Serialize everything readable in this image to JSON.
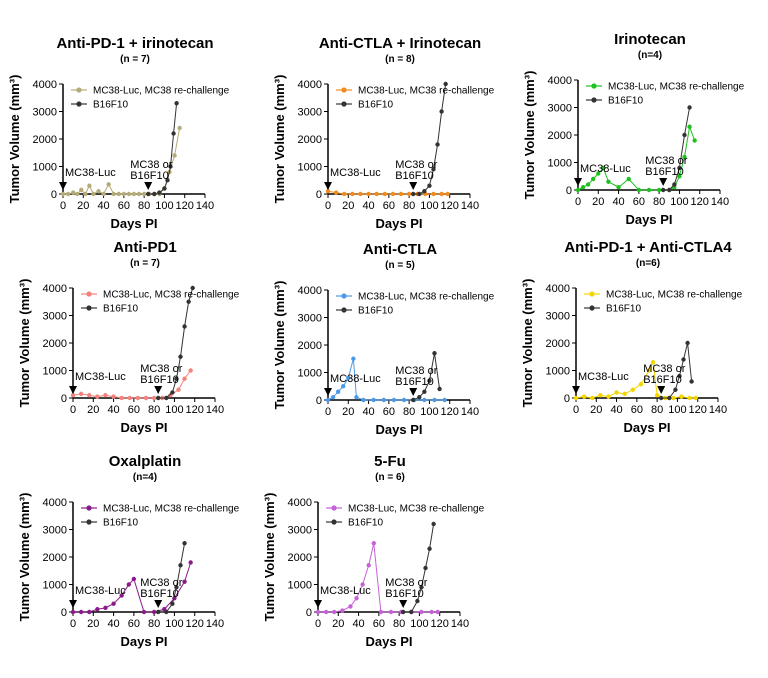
{
  "figure": {
    "background": "#ffffff",
    "series_colors": {
      "irinotecan_pd1": "#b5ab78",
      "irinotecan_ctla": "#f28b1d",
      "irinotecan": "#1ec11e",
      "pd1": "#f4817b",
      "ctla": "#4b9ae8",
      "pd1_ctla4": "#f5d500",
      "oxaliplatin": "#8a1a8a",
      "fu5": "#c761d8",
      "b16f10": "#333333"
    }
  },
  "chart_data": [
    {
      "type": "line",
      "title": "Anti-PD-1 + irinotecan",
      "subtitle": "(n = 7)",
      "xlabel": "Days PI",
      "ylabel": "Tumor Volume (mm³)",
      "xlim": [
        0,
        140
      ],
      "ylim": [
        0,
        4000
      ],
      "xticks": [
        "0",
        "20",
        "40",
        "60",
        "80",
        "100",
        "120",
        "140"
      ],
      "yticks": [
        "0",
        "1000",
        "2000",
        "3000",
        "4000"
      ],
      "annotations": [
        {
          "text": "MC38-Luc",
          "x": 0
        },
        {
          "text": "MC38 or",
          "text2": "B16F10",
          "x": 84
        }
      ],
      "series": [
        {
          "name": "MC38-Luc, MC38 re-challenge",
          "color": "#b5ab78",
          "x": [
            0,
            5,
            10,
            14,
            18,
            22,
            26,
            30,
            35,
            40,
            45,
            50,
            55,
            60,
            65,
            70,
            75,
            80,
            85,
            90,
            95,
            100,
            105,
            110,
            115
          ],
          "y": [
            0,
            0,
            50,
            0,
            150,
            0,
            300,
            0,
            100,
            0,
            350,
            0,
            0,
            0,
            0,
            0,
            0,
            0,
            0,
            0,
            0,
            200,
            800,
            1400,
            2400
          ]
        },
        {
          "name": "B16F10",
          "color": "#333333",
          "x": [
            84,
            90,
            95,
            100,
            103,
            106,
            109,
            112
          ],
          "y": [
            0,
            0,
            50,
            200,
            500,
            1000,
            2200,
            3300
          ]
        }
      ]
    },
    {
      "type": "line",
      "title": "Anti-CTLA + Irinotecan",
      "subtitle": "(n = 8)",
      "xlabel": "Days PI",
      "ylabel": "Tumor Volume (mm³)",
      "xlim": [
        0,
        140
      ],
      "ylim": [
        0,
        4000
      ],
      "xticks": [
        "0",
        "20",
        "40",
        "60",
        "80",
        "100",
        "120",
        "140"
      ],
      "yticks": [
        "0",
        "1000",
        "2000",
        "3000",
        "4000"
      ],
      "annotations": [
        {
          "text": "MC38-Luc",
          "x": 0
        },
        {
          "text": "MC38 or",
          "text2": "B16F10",
          "x": 84
        }
      ],
      "series": [
        {
          "name": "MC38-Luc, MC38 re-challenge",
          "color": "#f28b1d",
          "x": [
            0,
            8,
            16,
            24,
            32,
            40,
            48,
            56,
            64,
            72,
            80,
            88,
            96,
            104,
            112,
            118
          ],
          "y": [
            100,
            50,
            0,
            0,
            0,
            0,
            0,
            0,
            0,
            0,
            0,
            0,
            0,
            0,
            0,
            0
          ]
        },
        {
          "name": "B16F10",
          "color": "#333333",
          "x": [
            84,
            90,
            95,
            100,
            104,
            108,
            112,
            116
          ],
          "y": [
            0,
            0,
            100,
            300,
            900,
            1800,
            3000,
            4000
          ]
        }
      ]
    },
    {
      "type": "line",
      "title": "Irinotecan",
      "subtitle": "(n=4)",
      "xlabel": "Days PI",
      "ylabel": "Tumor Volume (mm³)",
      "xlim": [
        0,
        140
      ],
      "ylim": [
        0,
        4000
      ],
      "xticks": [
        "0",
        "20",
        "40",
        "60",
        "80",
        "100",
        "120",
        "140"
      ],
      "yticks": [
        "0",
        "1000",
        "2000",
        "3000",
        "4000"
      ],
      "annotations": [
        {
          "text": "MC38-Luc",
          "x": 0
        },
        {
          "text": "MC38 or",
          "text2": "B16F10",
          "x": 84
        }
      ],
      "series": [
        {
          "name": "MC38-Luc, MC38 re-challenge",
          "color": "#1ec11e",
          "x": [
            0,
            5,
            10,
            15,
            20,
            25,
            30,
            40,
            50,
            60,
            70,
            80,
            90,
            95,
            100,
            105,
            110,
            115
          ],
          "y": [
            0,
            100,
            200,
            400,
            600,
            800,
            300,
            100,
            400,
            0,
            0,
            0,
            0,
            100,
            500,
            1200,
            2300,
            1800
          ]
        },
        {
          "name": "B16F10",
          "color": "#333333",
          "x": [
            84,
            90,
            95,
            100,
            105,
            110
          ],
          "y": [
            0,
            0,
            200,
            800,
            2000,
            3000
          ]
        }
      ]
    },
    {
      "type": "line",
      "title": "Anti-PD1",
      "subtitle": "(n = 7)",
      "xlabel": "Days PI",
      "ylabel": "Tumor Volume (mm³)",
      "xlim": [
        0,
        140
      ],
      "ylim": [
        0,
        4000
      ],
      "xticks": [
        "0",
        "20",
        "40",
        "60",
        "80",
        "100",
        "120",
        "140"
      ],
      "yticks": [
        "0",
        "1000",
        "2000",
        "3000",
        "4000"
      ],
      "annotations": [
        {
          "text": "MC38-Luc",
          "x": 0
        },
        {
          "text": "MC38 or",
          "text2": "B16F10",
          "x": 84
        }
      ],
      "series": [
        {
          "name": "MC38-Luc, MC38 re-challenge",
          "color": "#f4817b",
          "x": [
            0,
            8,
            16,
            24,
            32,
            40,
            48,
            56,
            64,
            72,
            80,
            88,
            96,
            104,
            110,
            116
          ],
          "y": [
            100,
            150,
            100,
            50,
            100,
            50,
            0,
            0,
            0,
            0,
            0,
            0,
            100,
            300,
            700,
            1000
          ]
        },
        {
          "name": "B16F10",
          "color": "#333333",
          "x": [
            84,
            92,
            98,
            102,
            106,
            110,
            114,
            118
          ],
          "y": [
            0,
            0,
            200,
            700,
            1500,
            2600,
            3500,
            4000
          ]
        }
      ]
    },
    {
      "type": "line",
      "title": "Anti-CTLA",
      "subtitle": "(n = 5)",
      "xlabel": "Days PI",
      "ylabel": "Tumor Volume (mm³)",
      "xlim": [
        0,
        140
      ],
      "ylim": [
        0,
        4000
      ],
      "xticks": [
        "0",
        "20",
        "40",
        "60",
        "80",
        "100",
        "120",
        "140"
      ],
      "yticks": [
        "0",
        "1000",
        "2000",
        "3000",
        "4000"
      ],
      "annotations": [
        {
          "text": "MC38-Luc",
          "x": 0
        },
        {
          "text": "MC38 or",
          "text2": "B16F10",
          "x": 84
        }
      ],
      "series": [
        {
          "name": "MC38-Luc, MC38 re-challenge",
          "color": "#4b9ae8",
          "x": [
            0,
            5,
            10,
            15,
            20,
            25,
            28,
            35,
            45,
            55,
            65,
            75,
            85,
            95,
            105,
            115
          ],
          "y": [
            0,
            100,
            300,
            500,
            800,
            1500,
            100,
            0,
            0,
            0,
            0,
            0,
            0,
            0,
            0,
            0
          ]
        },
        {
          "name": "B16F10",
          "color": "#333333",
          "x": [
            84,
            90,
            95,
            100,
            105,
            110
          ],
          "y": [
            0,
            100,
            300,
            700,
            1700,
            400
          ]
        }
      ]
    },
    {
      "type": "line",
      "title": "Anti-PD-1 + Anti-CTLA4",
      "subtitle": "(n=6)",
      "xlabel": "Days PI",
      "ylabel": "Tumor Volume (mm³)",
      "xlim": [
        0,
        140
      ],
      "ylim": [
        0,
        4000
      ],
      "xticks": [
        "0",
        "20",
        "40",
        "60",
        "80",
        "100",
        "120",
        "140"
      ],
      "yticks": [
        "0",
        "1000",
        "2000",
        "3000",
        "4000"
      ],
      "annotations": [
        {
          "text": "MC38-Luc",
          "x": 0
        },
        {
          "text": "MC38 or",
          "text2": "B16F10",
          "x": 84
        }
      ],
      "series": [
        {
          "name": "MC38-Luc, MC38 re-challenge",
          "color": "#f5d500",
          "x": [
            0,
            8,
            16,
            24,
            32,
            40,
            48,
            56,
            64,
            72,
            76,
            80,
            88,
            96,
            104,
            112,
            118
          ],
          "y": [
            0,
            50,
            0,
            100,
            50,
            200,
            150,
            300,
            500,
            1000,
            1300,
            100,
            0,
            0,
            50,
            0,
            0
          ]
        },
        {
          "name": "B16F10",
          "color": "#333333",
          "x": [
            84,
            92,
            98,
            102,
            106,
            110,
            114
          ],
          "y": [
            0,
            0,
            300,
            800,
            1400,
            2000,
            600
          ]
        }
      ]
    },
    {
      "type": "line",
      "title": "Oxalplatin",
      "subtitle": "(n=4)",
      "xlabel": "Days PI",
      "ylabel": "Tumor Volume (mm³)",
      "xlim": [
        0,
        140
      ],
      "ylim": [
        0,
        4000
      ],
      "xticks": [
        "0",
        "20",
        "40",
        "60",
        "80",
        "100",
        "120",
        "140"
      ],
      "yticks": [
        "0",
        "1000",
        "2000",
        "3000",
        "4000"
      ],
      "annotations": [
        {
          "text": "MC38-Luc",
          "x": 0
        },
        {
          "text": "MC38 or",
          "text2": "B16F10",
          "x": 84
        }
      ],
      "series": [
        {
          "name": "MC38-Luc, MC38 re-challenge",
          "color": "#8a1a8a",
          "x": [
            0,
            8,
            16,
            24,
            32,
            40,
            48,
            55,
            60,
            70,
            80,
            90,
            100,
            110,
            116
          ],
          "y": [
            0,
            0,
            0,
            100,
            150,
            300,
            600,
            1000,
            1200,
            0,
            0,
            100,
            500,
            1100,
            1800
          ]
        },
        {
          "name": "B16F10",
          "color": "#333333",
          "x": [
            84,
            92,
            98,
            102,
            106,
            110
          ],
          "y": [
            0,
            0,
            300,
            900,
            1700,
            2500
          ]
        }
      ]
    },
    {
      "type": "line",
      "title": "5-Fu",
      "subtitle": "(n = 6)",
      "xlabel": "Days PI",
      "ylabel": "Tumor  Volume (mm³)",
      "xlim": [
        0,
        140
      ],
      "ylim": [
        0,
        4000
      ],
      "xticks": [
        "0",
        "20",
        "40",
        "60",
        "80",
        "100",
        "120",
        "140"
      ],
      "yticks": [
        "0",
        "1000",
        "2000",
        "3000",
        "4000"
      ],
      "annotations": [
        {
          "text": "MC38-Luc",
          "x": 0
        },
        {
          "text": "MC38 or",
          "text2": "B16F10",
          "x": 84
        }
      ],
      "series": [
        {
          "name": "MC38-Luc, MC38 re-challenge",
          "color": "#c761d8",
          "x": [
            0,
            8,
            16,
            24,
            32,
            38,
            44,
            50,
            55,
            62,
            72,
            82,
            92,
            102,
            112,
            118
          ],
          "y": [
            0,
            0,
            0,
            50,
            200,
            500,
            1000,
            1700,
            2500,
            0,
            0,
            0,
            0,
            0,
            0,
            0
          ]
        },
        {
          "name": "B16F10",
          "color": "#333333",
          "x": [
            84,
            92,
            98,
            102,
            106,
            110,
            114
          ],
          "y": [
            0,
            0,
            400,
            900,
            1600,
            2300,
            3200
          ]
        }
      ]
    }
  ]
}
